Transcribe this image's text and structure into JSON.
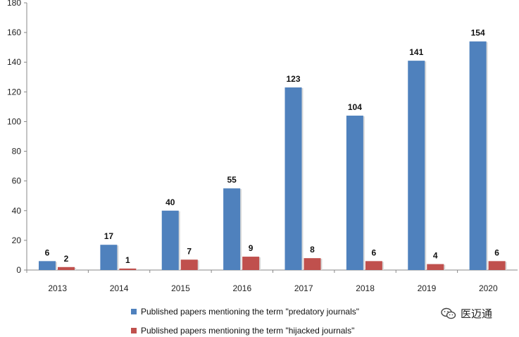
{
  "chart_data": {
    "type": "bar",
    "categories": [
      "2013",
      "2014",
      "2015",
      "2016",
      "2017",
      "2018",
      "2019",
      "2020"
    ],
    "series": [
      {
        "name": "Published papers mentioning the term \"predatory journals\"",
        "values": [
          6,
          17,
          40,
          55,
          123,
          104,
          141,
          154
        ],
        "color": "#4f81bd",
        "labels": [
          "6",
          "17",
          "40",
          "55",
          "123",
          "104",
          "141",
          "154"
        ]
      },
      {
        "name": "Published papers mentioning the term \"hijacked journals\"",
        "values": [
          2,
          1,
          7,
          9,
          8,
          6,
          4,
          6
        ],
        "color": "#c0504d",
        "labels": [
          "2",
          "1",
          "7",
          "9",
          "8",
          "6",
          "4",
          "6"
        ]
      }
    ],
    "yticks": [
      "0",
      "20",
      "40",
      "60",
      "80",
      "100",
      "120",
      "140",
      "160",
      "180"
    ],
    "ylim": [
      0,
      180
    ],
    "title": "",
    "xlabel": "",
    "ylabel": "",
    "grid": false,
    "legend_position": "bottom-center"
  },
  "watermark": {
    "text": "医迈通",
    "icon": "wechat-logo-icon"
  }
}
